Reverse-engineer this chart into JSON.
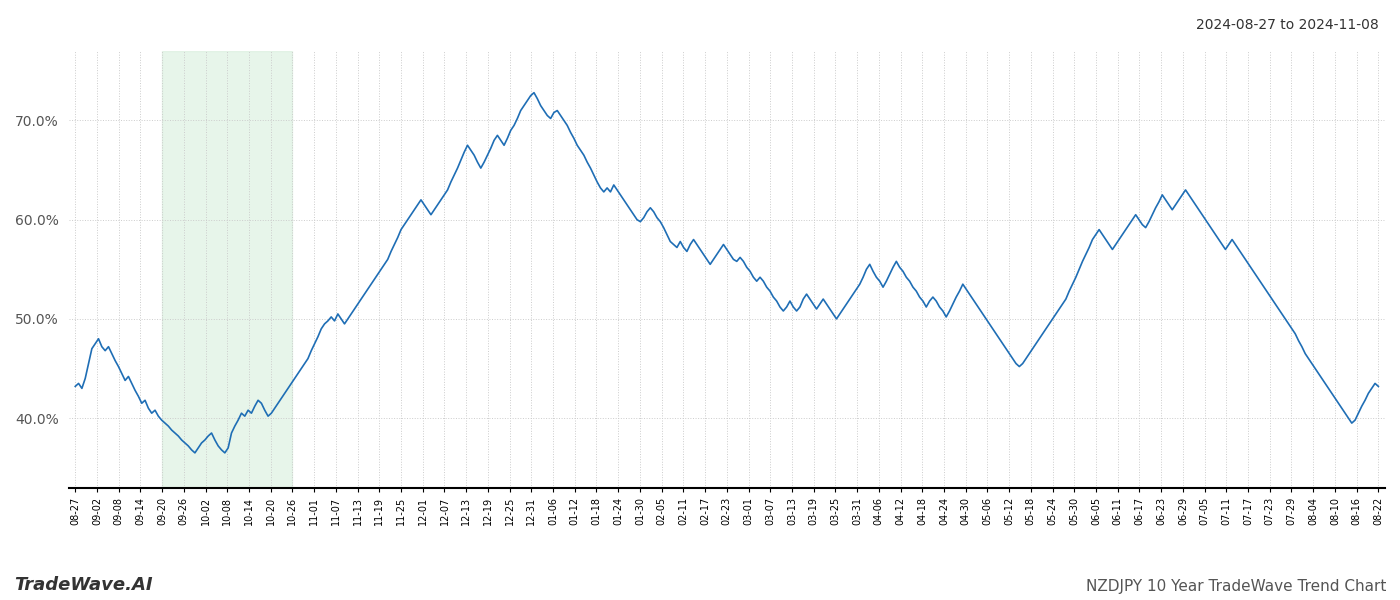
{
  "title": "NZDJPY 10 Year TradeWave Trend Chart",
  "date_range_label": "2024-08-27 to 2024-11-08",
  "line_color": "#1f6eb5",
  "line_width": 1.2,
  "shaded_region_color": "#d4edda",
  "shaded_region_alpha": 0.55,
  "background_color": "#ffffff",
  "grid_color": "#cccccc",
  "grid_style": ":",
  "ylim": [
    33,
    77
  ],
  "yticks": [
    40.0,
    50.0,
    60.0,
    70.0
  ],
  "footer_left": "TradeWave.AI",
  "footer_right": "NZDJPY 10 Year TradeWave Trend Chart",
  "shaded_x_start_label": "09-20",
  "shaded_x_end_label": "10-26",
  "x_tick_labels": [
    "08-27",
    "09-02",
    "09-08",
    "09-14",
    "09-20",
    "09-26",
    "10-02",
    "10-08",
    "10-14",
    "10-20",
    "10-26",
    "11-01",
    "11-07",
    "11-13",
    "11-19",
    "11-25",
    "12-01",
    "12-07",
    "12-13",
    "12-19",
    "12-25",
    "12-31",
    "01-06",
    "01-12",
    "01-18",
    "01-24",
    "01-30",
    "02-05",
    "02-11",
    "02-17",
    "02-23",
    "03-01",
    "03-07",
    "03-13",
    "03-19",
    "03-25",
    "03-31",
    "04-06",
    "04-12",
    "04-18",
    "04-24",
    "04-30",
    "05-06",
    "05-12",
    "05-18",
    "05-24",
    "05-30",
    "06-05",
    "06-11",
    "06-17",
    "06-23",
    "06-29",
    "07-05",
    "07-11",
    "07-17",
    "07-23",
    "07-29",
    "08-04",
    "08-10",
    "08-16",
    "08-22"
  ],
  "values": [
    43.2,
    43.5,
    43.0,
    44.0,
    45.5,
    47.0,
    47.5,
    48.0,
    47.2,
    46.8,
    47.2,
    46.5,
    45.8,
    45.2,
    44.5,
    43.8,
    44.2,
    43.5,
    42.8,
    42.2,
    41.5,
    41.8,
    41.0,
    40.5,
    40.8,
    40.2,
    39.8,
    39.5,
    39.2,
    38.8,
    38.5,
    38.2,
    37.8,
    37.5,
    37.2,
    36.8,
    36.5,
    37.0,
    37.5,
    37.8,
    38.2,
    38.5,
    37.8,
    37.2,
    36.8,
    36.5,
    37.0,
    38.5,
    39.2,
    39.8,
    40.5,
    40.2,
    40.8,
    40.5,
    41.2,
    41.8,
    41.5,
    40.8,
    40.2,
    40.5,
    41.0,
    41.5,
    42.0,
    42.5,
    43.0,
    43.5,
    44.0,
    44.5,
    45.0,
    45.5,
    46.0,
    46.8,
    47.5,
    48.2,
    49.0,
    49.5,
    49.8,
    50.2,
    49.8,
    50.5,
    50.0,
    49.5,
    50.0,
    50.5,
    51.0,
    51.5,
    52.0,
    52.5,
    53.0,
    53.5,
    54.0,
    54.5,
    55.0,
    55.5,
    56.0,
    56.8,
    57.5,
    58.2,
    59.0,
    59.5,
    60.0,
    60.5,
    61.0,
    61.5,
    62.0,
    61.5,
    61.0,
    60.5,
    61.0,
    61.5,
    62.0,
    62.5,
    63.0,
    63.8,
    64.5,
    65.2,
    66.0,
    66.8,
    67.5,
    67.0,
    66.5,
    65.8,
    65.2,
    65.8,
    66.5,
    67.2,
    68.0,
    68.5,
    68.0,
    67.5,
    68.2,
    69.0,
    69.5,
    70.2,
    71.0,
    71.5,
    72.0,
    72.5,
    72.8,
    72.2,
    71.5,
    71.0,
    70.5,
    70.2,
    70.8,
    71.0,
    70.5,
    70.0,
    69.5,
    68.8,
    68.2,
    67.5,
    67.0,
    66.5,
    65.8,
    65.2,
    64.5,
    63.8,
    63.2,
    62.8,
    63.2,
    62.8,
    63.5,
    63.0,
    62.5,
    62.0,
    61.5,
    61.0,
    60.5,
    60.0,
    59.8,
    60.2,
    60.8,
    61.2,
    60.8,
    60.2,
    59.8,
    59.2,
    58.5,
    57.8,
    57.5,
    57.2,
    57.8,
    57.2,
    56.8,
    57.5,
    58.0,
    57.5,
    57.0,
    56.5,
    56.0,
    55.5,
    56.0,
    56.5,
    57.0,
    57.5,
    57.0,
    56.5,
    56.0,
    55.8,
    56.2,
    55.8,
    55.2,
    54.8,
    54.2,
    53.8,
    54.2,
    53.8,
    53.2,
    52.8,
    52.2,
    51.8,
    51.2,
    50.8,
    51.2,
    51.8,
    51.2,
    50.8,
    51.2,
    52.0,
    52.5,
    52.0,
    51.5,
    51.0,
    51.5,
    52.0,
    51.5,
    51.0,
    50.5,
    50.0,
    50.5,
    51.0,
    51.5,
    52.0,
    52.5,
    53.0,
    53.5,
    54.2,
    55.0,
    55.5,
    54.8,
    54.2,
    53.8,
    53.2,
    53.8,
    54.5,
    55.2,
    55.8,
    55.2,
    54.8,
    54.2,
    53.8,
    53.2,
    52.8,
    52.2,
    51.8,
    51.2,
    51.8,
    52.2,
    51.8,
    51.2,
    50.8,
    50.2,
    50.8,
    51.5,
    52.2,
    52.8,
    53.5,
    53.0,
    52.5,
    52.0,
    51.5,
    51.0,
    50.5,
    50.0,
    49.5,
    49.0,
    48.5,
    48.0,
    47.5,
    47.0,
    46.5,
    46.0,
    45.5,
    45.2,
    45.5,
    46.0,
    46.5,
    47.0,
    47.5,
    48.0,
    48.5,
    49.0,
    49.5,
    50.0,
    50.5,
    51.0,
    51.5,
    52.0,
    52.8,
    53.5,
    54.2,
    55.0,
    55.8,
    56.5,
    57.2,
    58.0,
    58.5,
    59.0,
    58.5,
    58.0,
    57.5,
    57.0,
    57.5,
    58.0,
    58.5,
    59.0,
    59.5,
    60.0,
    60.5,
    60.0,
    59.5,
    59.2,
    59.8,
    60.5,
    61.2,
    61.8,
    62.5,
    62.0,
    61.5,
    61.0,
    61.5,
    62.0,
    62.5,
    63.0,
    62.5,
    62.0,
    61.5,
    61.0,
    60.5,
    60.0,
    59.5,
    59.0,
    58.5,
    58.0,
    57.5,
    57.0,
    57.5,
    58.0,
    57.5,
    57.0,
    56.5,
    56.0,
    55.5,
    55.0,
    54.5,
    54.0,
    53.5,
    53.0,
    52.5,
    52.0,
    51.5,
    51.0,
    50.5,
    50.0,
    49.5,
    49.0,
    48.5,
    47.8,
    47.2,
    46.5,
    46.0,
    45.5,
    45.0,
    44.5,
    44.0,
    43.5,
    43.0,
    42.5,
    42.0,
    41.5,
    41.0,
    40.5,
    40.0,
    39.5,
    39.8,
    40.5,
    41.2,
    41.8,
    42.5,
    43.0,
    43.5,
    43.2
  ]
}
